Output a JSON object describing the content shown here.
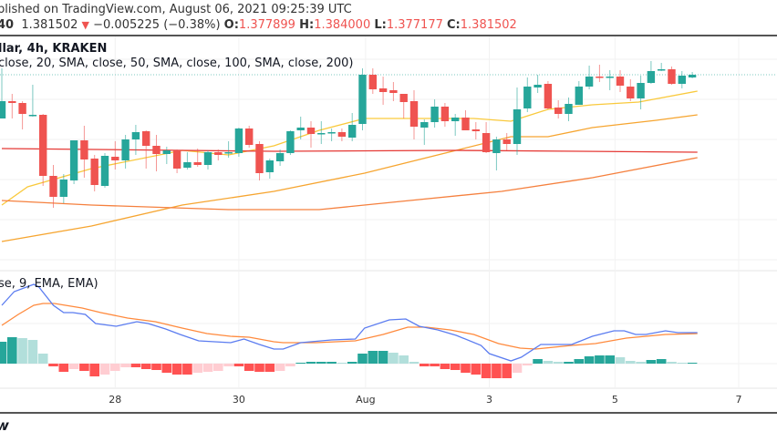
{
  "header": {
    "published": "blished on TradingView.com, August 06, 2021 09:25:39 UTC",
    "symbol_fragment": "40",
    "last_price": "1.381502",
    "change_icon": "triangle-down-icon",
    "change": "−0.005225 (−0.38%)",
    "open_label": "O:",
    "open": "1.377899",
    "high_label": "H:",
    "high": "1.384000",
    "low_label": "L:",
    "low": "1.377177",
    "close_label": "C:",
    "close": "1.381502"
  },
  "chart_title": "llar, 4h, KRAKEN",
  "studies_label": "close, 20, SMA, close, 50, SMA, close, 100, SMA, close, 200)",
  "macd_label": "se, 9, EMA, EMA)",
  "logo_text": "V",
  "colors": {
    "up": "#26a69a",
    "down": "#ef5350",
    "sma20": "#f9c93c",
    "sma50": "#f6a530",
    "sma100": "#e53935",
    "sma200": "#f5803e",
    "macd": "#5b7cf0",
    "signal": "#ff8a3d",
    "hist_up_strong": "#26a69a",
    "hist_up_weak": "#b2dfdb",
    "hist_down_strong": "#ff5252",
    "hist_down_weak": "#ffcdd2"
  },
  "chart_data": [
    {
      "type": "candlestick",
      "last_price": 1.3815,
      "x_tick_labels": [
        "28",
        "30",
        "Aug",
        "3",
        "5",
        "7"
      ],
      "x_tick_bars": [
        11,
        23,
        35.3,
        47.3,
        59.5,
        71.5
      ],
      "candles_ohlc": [
        [
          1.3767,
          1.3822,
          1.3767,
          1.3786
        ],
        [
          1.3786,
          1.3794,
          1.3767,
          1.3784
        ],
        [
          1.3784,
          1.3786,
          1.3755,
          1.3772
        ],
        [
          1.377,
          1.3804,
          1.3769,
          1.3771
        ],
        [
          1.3771,
          1.3772,
          1.3693,
          1.3704
        ],
        [
          1.3704,
          1.3716,
          1.3669,
          1.3681
        ],
        [
          1.3681,
          1.3706,
          1.3674,
          1.37
        ],
        [
          1.3699,
          1.3743,
          1.3695,
          1.3743
        ],
        [
          1.3743,
          1.3759,
          1.3702,
          1.3722
        ],
        [
          1.3723,
          1.3727,
          1.3687,
          1.3694
        ],
        [
          1.3693,
          1.3729,
          1.3691,
          1.3726
        ],
        [
          1.3725,
          1.3742,
          1.3711,
          1.3721
        ],
        [
          1.3721,
          1.3749,
          1.3712,
          1.3744
        ],
        [
          1.3744,
          1.376,
          1.3727,
          1.3752
        ],
        [
          1.3753,
          1.3754,
          1.3712,
          1.3737
        ],
        [
          1.3737,
          1.3749,
          1.3709,
          1.3728
        ],
        [
          1.3728,
          1.3736,
          1.3717,
          1.3732
        ],
        [
          1.3732,
          1.3733,
          1.3707,
          1.3712
        ],
        [
          1.3713,
          1.373,
          1.3711,
          1.3719
        ],
        [
          1.3719,
          1.3734,
          1.3714,
          1.3716
        ],
        [
          1.3716,
          1.3732,
          1.3711,
          1.373
        ],
        [
          1.373,
          1.3733,
          1.3721,
          1.3727
        ],
        [
          1.3729,
          1.3742,
          1.3724,
          1.373
        ],
        [
          1.3729,
          1.3757,
          1.3725,
          1.3756
        ],
        [
          1.3756,
          1.3759,
          1.3735,
          1.3738
        ],
        [
          1.3739,
          1.3742,
          1.3699,
          1.3707
        ],
        [
          1.3708,
          1.3723,
          1.3701,
          1.3721
        ],
        [
          1.372,
          1.3733,
          1.3715,
          1.3729
        ],
        [
          1.3729,
          1.3754,
          1.3727,
          1.3753
        ],
        [
          1.3754,
          1.3769,
          1.3744,
          1.3757
        ],
        [
          1.3757,
          1.3764,
          1.3735,
          1.375
        ],
        [
          1.375,
          1.3764,
          1.3739,
          1.3751
        ],
        [
          1.3751,
          1.3756,
          1.3742,
          1.3752
        ],
        [
          1.3752,
          1.3756,
          1.3742,
          1.3747
        ],
        [
          1.3746,
          1.3773,
          1.3742,
          1.376
        ],
        [
          1.3761,
          1.3822,
          1.3754,
          1.3815
        ],
        [
          1.3815,
          1.3822,
          1.3794,
          1.3799
        ],
        [
          1.38,
          1.3813,
          1.3782,
          1.3796
        ],
        [
          1.3798,
          1.3807,
          1.3786,
          1.3795
        ],
        [
          1.3794,
          1.3794,
          1.3767,
          1.3785
        ],
        [
          1.3786,
          1.3798,
          1.3744,
          1.3758
        ],
        [
          1.3757,
          1.3766,
          1.3738,
          1.3763
        ],
        [
          1.3763,
          1.3788,
          1.3757,
          1.378
        ],
        [
          1.378,
          1.3784,
          1.3758,
          1.3764
        ],
        [
          1.3764,
          1.3772,
          1.3748,
          1.3768
        ],
        [
          1.3768,
          1.3776,
          1.3754,
          1.3754
        ],
        [
          1.3755,
          1.3763,
          1.3744,
          1.3753
        ],
        [
          1.3751,
          1.3763,
          1.3729,
          1.373
        ],
        [
          1.3729,
          1.3747,
          1.371,
          1.3744
        ],
        [
          1.3744,
          1.3751,
          1.3732,
          1.3739
        ],
        [
          1.3739,
          1.3801,
          1.3727,
          1.3777
        ],
        [
          1.3778,
          1.3812,
          1.3774,
          1.3802
        ],
        [
          1.3801,
          1.3815,
          1.3795,
          1.3804
        ],
        [
          1.3805,
          1.3808,
          1.3777,
          1.3778
        ],
        [
          1.3779,
          1.3787,
          1.3767,
          1.3772
        ],
        [
          1.3772,
          1.379,
          1.3764,
          1.3783
        ],
        [
          1.3782,
          1.3808,
          1.3782,
          1.3802
        ],
        [
          1.3802,
          1.3825,
          1.3799,
          1.3813
        ],
        [
          1.3813,
          1.3826,
          1.3807,
          1.3812
        ],
        [
          1.3812,
          1.382,
          1.3798,
          1.3813
        ],
        [
          1.3813,
          1.382,
          1.3796,
          1.3803
        ],
        [
          1.3802,
          1.381,
          1.3786,
          1.3789
        ],
        [
          1.3789,
          1.3814,
          1.3777,
          1.3806
        ],
        [
          1.3806,
          1.383,
          1.3805,
          1.3819
        ],
        [
          1.382,
          1.3828,
          1.3819,
          1.3821
        ],
        [
          1.3821,
          1.3824,
          1.3804,
          1.3805
        ],
        [
          1.3805,
          1.3819,
          1.38,
          1.3814
        ],
        [
          1.3812,
          1.3818,
          1.3811,
          1.3815
        ]
      ],
      "moving_averages": [
        {
          "key": "sma20",
          "points": [
            [
              0,
              1.3672
            ],
            [
              2.5,
              1.3692
            ],
            [
              8.7,
              1.3712
            ],
            [
              17.5,
              1.3732
            ],
            [
              22,
              1.3727
            ],
            [
              26.4,
              1.3737
            ],
            [
              30.8,
              1.3754
            ],
            [
              35.2,
              1.3767
            ],
            [
              45.8,
              1.3767
            ],
            [
              49.4,
              1.3764
            ],
            [
              53,
              1.3777
            ],
            [
              57.3,
              1.3782
            ],
            [
              61.8,
              1.3785
            ],
            [
              67.5,
              1.3797
            ]
          ]
        },
        {
          "key": "sma50",
          "points": [
            [
              0,
              1.3632
            ],
            [
              8.7,
              1.3649
            ],
            [
              17.5,
              1.3672
            ],
            [
              26.4,
              1.3687
            ],
            [
              35.2,
              1.3707
            ],
            [
              42.3,
              1.3727
            ],
            [
              49.4,
              1.3747
            ],
            [
              53,
              1.3747
            ],
            [
              57.3,
              1.3757
            ],
            [
              63.5,
              1.3765
            ],
            [
              67.5,
              1.3771
            ]
          ]
        },
        {
          "key": "sma100",
          "points": [
            [
              0,
              1.3734
            ],
            [
              17.5,
              1.3732
            ],
            [
              26.4,
              1.3731
            ],
            [
              44,
              1.3732
            ],
            [
              67.5,
              1.373
            ]
          ]
        },
        {
          "key": "sma200",
          "points": [
            [
              0,
              1.3677
            ],
            [
              8.7,
              1.3672
            ],
            [
              22,
              1.3667
            ],
            [
              30.8,
              1.3667
            ],
            [
              39.6,
              1.3677
            ],
            [
              48.5,
              1.3687
            ],
            [
              57.3,
              1.3702
            ],
            [
              67.5,
              1.3724
            ]
          ]
        }
      ]
    },
    {
      "type": "macd",
      "histogram": [
        0.0024,
        0.0029,
        0.0028,
        0.0026,
        0.0011,
        -0.0003,
        -0.0009,
        -0.0006,
        -0.0008,
        -0.0014,
        -0.0012,
        -0.0008,
        -0.0004,
        -0.0004,
        -0.0006,
        -0.0007,
        -0.001,
        -0.0012,
        -0.0012,
        -0.001,
        -0.0009,
        -0.0008,
        -0.0003,
        -0.0003,
        -0.0008,
        -0.0009,
        -0.0009,
        -0.0008,
        -0.0003,
        0.0001,
        0.0002,
        0.0002,
        0.0002,
        0.0001,
        0.0002,
        0.0011,
        0.0014,
        0.0014,
        0.0012,
        0.0009,
        0.0002,
        -0.0003,
        -0.0003,
        -0.0006,
        -0.0007,
        -0.001,
        -0.0012,
        -0.0016,
        -0.0016,
        -0.0016,
        -0.001,
        -0.0002,
        0.0005,
        0.0003,
        0.0002,
        0.0002,
        0.0005,
        0.0008,
        0.0009,
        0.0009,
        0.0007,
        0.0003,
        0.0002,
        0.0004,
        0.0005,
        0.0002,
        0.0001,
        0.0001
      ],
      "macd_line": [
        [
          0,
          0.0064
        ],
        [
          1.2,
          0.0079
        ],
        [
          3.1,
          0.0087
        ],
        [
          3.6,
          0.0084
        ],
        [
          5,
          0.0064
        ],
        [
          6,
          0.0056
        ],
        [
          6.9,
          0.0056
        ],
        [
          8.1,
          0.0054
        ],
        [
          9.1,
          0.0044
        ],
        [
          11.1,
          0.0041
        ],
        [
          13.1,
          0.0046
        ],
        [
          14.2,
          0.0044
        ],
        [
          15.9,
          0.0038
        ],
        [
          17.3,
          0.0032
        ],
        [
          19.1,
          0.0025
        ],
        [
          22.2,
          0.0023
        ],
        [
          23.5,
          0.0027
        ],
        [
          25,
          0.0021
        ],
        [
          26.4,
          0.0016
        ],
        [
          27.3,
          0.0016
        ],
        [
          29,
          0.0023
        ],
        [
          32,
          0.0026
        ],
        [
          34.3,
          0.0027
        ],
        [
          35.2,
          0.0039
        ],
        [
          37.6,
          0.0048
        ],
        [
          39.2,
          0.0049
        ],
        [
          40.5,
          0.0041
        ],
        [
          42.3,
          0.0037
        ],
        [
          44.1,
          0.0031
        ],
        [
          46.5,
          0.002
        ],
        [
          47.3,
          0.0011
        ],
        [
          49.4,
          0.0003
        ],
        [
          50.4,
          0.0007
        ],
        [
          52.3,
          0.0021
        ],
        [
          55.3,
          0.0021
        ],
        [
          57.3,
          0.003
        ],
        [
          59.4,
          0.0036
        ],
        [
          60.4,
          0.0036
        ],
        [
          61.5,
          0.0032
        ],
        [
          62.5,
          0.0032
        ],
        [
          64.4,
          0.0036
        ],
        [
          65.6,
          0.0034
        ],
        [
          67.5,
          0.0034
        ]
      ],
      "signal_line": [
        [
          0,
          0.0042
        ],
        [
          1.6,
          0.0054
        ],
        [
          3.1,
          0.0064
        ],
        [
          4,
          0.0066
        ],
        [
          5.1,
          0.0066
        ],
        [
          7.8,
          0.0061
        ],
        [
          9.6,
          0.0056
        ],
        [
          12.2,
          0.005
        ],
        [
          14.9,
          0.0046
        ],
        [
          17.5,
          0.0039
        ],
        [
          19.9,
          0.0033
        ],
        [
          22.2,
          0.003
        ],
        [
          24,
          0.0029
        ],
        [
          26.4,
          0.0024
        ],
        [
          27.3,
          0.0023
        ],
        [
          30.5,
          0.0023
        ],
        [
          34.3,
          0.0025
        ],
        [
          37,
          0.0032
        ],
        [
          39.4,
          0.004
        ],
        [
          41.2,
          0.004
        ],
        [
          43.5,
          0.0037
        ],
        [
          45.8,
          0.0032
        ],
        [
          48.2,
          0.0022
        ],
        [
          50.3,
          0.0017
        ],
        [
          51.8,
          0.0016
        ],
        [
          55.3,
          0.002
        ],
        [
          57.6,
          0.0022
        ],
        [
          60.6,
          0.0028
        ],
        [
          64.4,
          0.0032
        ],
        [
          67.5,
          0.0033
        ]
      ]
    }
  ]
}
